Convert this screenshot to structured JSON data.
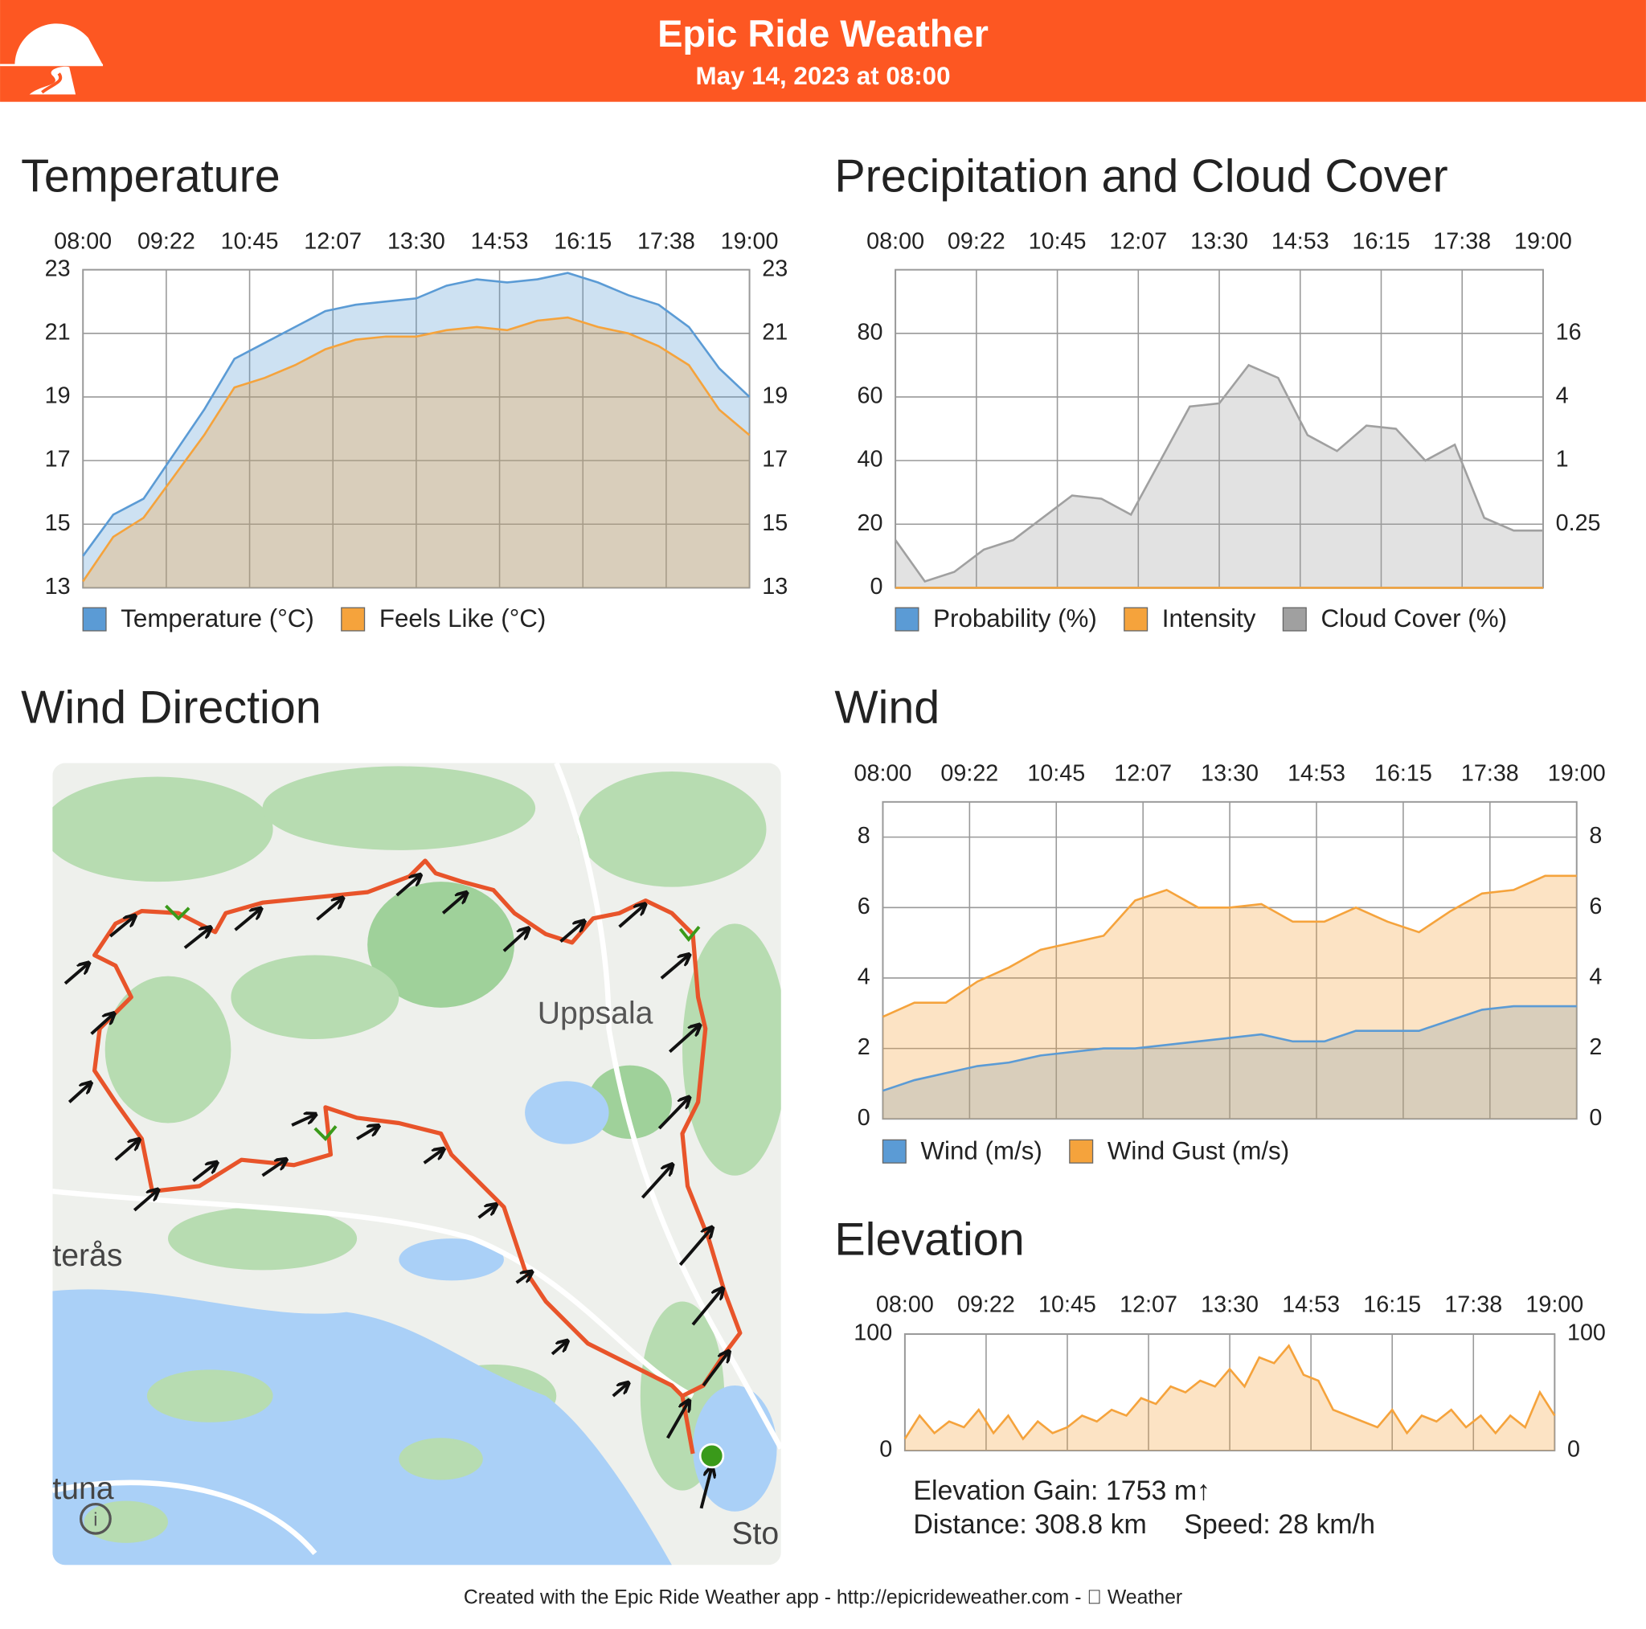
{
  "header": {
    "title": "Epic Ride Weather",
    "subtitle": "May 14, 2023 at 08:00"
  },
  "chart_data": [
    {
      "type": "area",
      "title": "Temperature",
      "x": [
        8,
        8.5,
        9,
        9.5,
        10,
        10.5,
        11,
        11.5,
        12,
        12.5,
        13,
        13.5,
        14,
        14.5,
        15,
        15.5,
        16,
        16.5,
        17,
        17.5,
        18,
        18.5,
        19
      ],
      "xlim": [
        8,
        19
      ],
      "xticks": [
        {
          "value": 8,
          "label": "08:00"
        },
        {
          "value": 9.375,
          "label": "09:22"
        },
        {
          "value": 10.75,
          "label": "10:45"
        },
        {
          "value": 12.125,
          "label": "12:07"
        },
        {
          "value": 13.5,
          "label": "13:30"
        },
        {
          "value": 14.875,
          "label": "14:53"
        },
        {
          "value": 16.25,
          "label": "16:15"
        },
        {
          "value": 17.625,
          "label": "17:38"
        },
        {
          "value": 19,
          "label": "19:00"
        }
      ],
      "ylim": [
        13,
        23
      ],
      "yticks": [
        13,
        15,
        17,
        19,
        21,
        23
      ],
      "y2lim": [
        13,
        23
      ],
      "y2ticks": [
        13,
        15,
        17,
        19,
        21,
        23
      ],
      "grid": true,
      "series": [
        {
          "name": "Temperature (°C)",
          "color": "#5b9bd5",
          "values": [
            14.0,
            15.3,
            15.8,
            17.2,
            18.6,
            20.2,
            20.7,
            21.2,
            21.7,
            21.9,
            22.0,
            22.1,
            22.5,
            22.7,
            22.6,
            22.7,
            22.9,
            22.6,
            22.2,
            21.9,
            21.2,
            19.9,
            19.0
          ]
        },
        {
          "name": "Feels Like (°C)",
          "color": "#f5a33c",
          "values": [
            13.2,
            14.6,
            15.2,
            16.5,
            17.8,
            19.3,
            19.6,
            20.0,
            20.5,
            20.8,
            20.9,
            20.9,
            21.1,
            21.2,
            21.1,
            21.4,
            21.5,
            21.2,
            21.0,
            20.6,
            20.0,
            18.6,
            17.8
          ]
        }
      ]
    },
    {
      "type": "area",
      "title": "Precipitation and Cloud Cover",
      "x": [
        8,
        8.5,
        9,
        9.5,
        10,
        10.5,
        11,
        11.5,
        12,
        12.5,
        13,
        13.5,
        14,
        14.5,
        15,
        15.5,
        16,
        16.5,
        17,
        17.5,
        18,
        18.5,
        19
      ],
      "xlim": [
        8,
        19
      ],
      "xticks": [
        {
          "value": 8,
          "label": "08:00"
        },
        {
          "value": 9.375,
          "label": "09:22"
        },
        {
          "value": 10.75,
          "label": "10:45"
        },
        {
          "value": 12.125,
          "label": "12:07"
        },
        {
          "value": 13.5,
          "label": "13:30"
        },
        {
          "value": 14.875,
          "label": "14:53"
        },
        {
          "value": 16.25,
          "label": "16:15"
        },
        {
          "value": 17.625,
          "label": "17:38"
        },
        {
          "value": 19,
          "label": "19:00"
        }
      ],
      "ylim": [
        0,
        100
      ],
      "yticks": [
        0,
        20,
        40,
        60,
        80
      ],
      "y2lim": [
        0.0625,
        64
      ],
      "y2log": true,
      "y2ticks": [
        0.25,
        1,
        4,
        16
      ],
      "grid": true,
      "series": [
        {
          "name": "Probability (%)",
          "color": "#5b9bd5",
          "values": [
            0,
            0,
            0,
            0,
            0,
            0,
            0,
            0,
            0,
            0,
            0,
            0,
            0,
            0,
            0,
            0,
            0,
            0,
            0,
            0,
            0,
            0,
            0
          ]
        },
        {
          "name": "Intensity",
          "color": "#f5a33c",
          "axis": "y2",
          "values": [
            0,
            0,
            0,
            0,
            0,
            0,
            0,
            0,
            0,
            0,
            0,
            0,
            0,
            0,
            0,
            0,
            0,
            0,
            0,
            0,
            0,
            0,
            0
          ]
        },
        {
          "name": "Cloud Cover (%)",
          "color": "#a0a0a0",
          "values": [
            15,
            2,
            5,
            12,
            15,
            22,
            29,
            28,
            23,
            40,
            57,
            58,
            70,
            66,
            48,
            43,
            51,
            50,
            40,
            45,
            22,
            18,
            18
          ]
        }
      ]
    },
    {
      "type": "area",
      "title": "Wind",
      "x": [
        8,
        8.5,
        9,
        9.5,
        10,
        10.5,
        11,
        11.5,
        12,
        12.5,
        13,
        13.5,
        14,
        14.5,
        15,
        15.5,
        16,
        16.5,
        17,
        17.5,
        18,
        18.5,
        19
      ],
      "xlim": [
        8,
        19
      ],
      "xticks": [
        {
          "value": 8,
          "label": "08:00"
        },
        {
          "value": 9.375,
          "label": "09:22"
        },
        {
          "value": 10.75,
          "label": "10:45"
        },
        {
          "value": 12.125,
          "label": "12:07"
        },
        {
          "value": 13.5,
          "label": "13:30"
        },
        {
          "value": 14.875,
          "label": "14:53"
        },
        {
          "value": 16.25,
          "label": "16:15"
        },
        {
          "value": 17.625,
          "label": "17:38"
        },
        {
          "value": 19,
          "label": "19:00"
        }
      ],
      "ylim": [
        0,
        9
      ],
      "yticks": [
        0,
        2,
        4,
        6,
        8
      ],
      "y2lim": [
        0,
        9
      ],
      "y2ticks": [
        0,
        2,
        4,
        6,
        8
      ],
      "grid": true,
      "series": [
        {
          "name": "Wind (m/s)",
          "color": "#5b9bd5",
          "values": [
            0.8,
            1.1,
            1.3,
            1.5,
            1.6,
            1.8,
            1.9,
            2.0,
            2.0,
            2.1,
            2.2,
            2.3,
            2.4,
            2.2,
            2.2,
            2.5,
            2.5,
            2.5,
            2.8,
            3.1,
            3.2,
            3.2,
            3.2
          ]
        },
        {
          "name": "Wind Gust (m/s)",
          "color": "#f5a33c",
          "values": [
            2.9,
            3.3,
            3.3,
            3.9,
            4.3,
            4.8,
            5.0,
            5.2,
            6.2,
            6.5,
            6.0,
            6.0,
            6.1,
            5.6,
            5.6,
            6.0,
            5.6,
            5.3,
            5.9,
            6.4,
            6.5,
            6.9,
            6.9
          ]
        }
      ]
    },
    {
      "type": "area",
      "title": "Elevation",
      "x": [
        8,
        8.25,
        8.5,
        8.75,
        9,
        9.25,
        9.5,
        9.75,
        10,
        10.25,
        10.5,
        10.75,
        11,
        11.25,
        11.5,
        11.75,
        12,
        12.25,
        12.5,
        12.75,
        13,
        13.25,
        13.5,
        13.75,
        14,
        14.25,
        14.5,
        14.75,
        15,
        15.25,
        15.5,
        15.75,
        16,
        16.25,
        16.5,
        16.75,
        17,
        17.25,
        17.5,
        17.75,
        18,
        18.25,
        18.5,
        18.75,
        19
      ],
      "xlim": [
        8,
        19
      ],
      "xticks": [
        {
          "value": 8,
          "label": "08:00"
        },
        {
          "value": 9.375,
          "label": "09:22"
        },
        {
          "value": 10.75,
          "label": "10:45"
        },
        {
          "value": 12.125,
          "label": "12:07"
        },
        {
          "value": 13.5,
          "label": "13:30"
        },
        {
          "value": 14.875,
          "label": "14:53"
        },
        {
          "value": 16.25,
          "label": "16:15"
        },
        {
          "value": 17.625,
          "label": "17:38"
        },
        {
          "value": 19,
          "label": "19:00"
        }
      ],
      "ylim": [
        0,
        100
      ],
      "yticks": [
        0,
        100
      ],
      "y2lim": [
        0,
        100
      ],
      "y2ticks": [
        0,
        100
      ],
      "grid": true,
      "series": [
        {
          "color": "#f5a33c",
          "values": [
            10,
            30,
            15,
            25,
            20,
            35,
            15,
            30,
            10,
            25,
            15,
            20,
            30,
            25,
            35,
            30,
            45,
            40,
            55,
            50,
            60,
            55,
            70,
            55,
            80,
            75,
            90,
            65,
            60,
            35,
            30,
            25,
            20,
            35,
            15,
            30,
            25,
            35,
            20,
            30,
            15,
            30,
            20,
            50,
            30
          ]
        }
      ]
    }
  ],
  "map": {
    "title": "Wind Direction",
    "labels": [
      "Uppsala",
      "terås",
      "tuna",
      "Sto"
    ]
  },
  "stats": {
    "gain": "Elevation Gain: 1753 m↑",
    "distance": "Distance: 308.8 km",
    "speed": "Speed: 28 km/h"
  },
  "footer": "Created with the Epic Ride Weather app - http://epicrideweather.com -  Weather"
}
